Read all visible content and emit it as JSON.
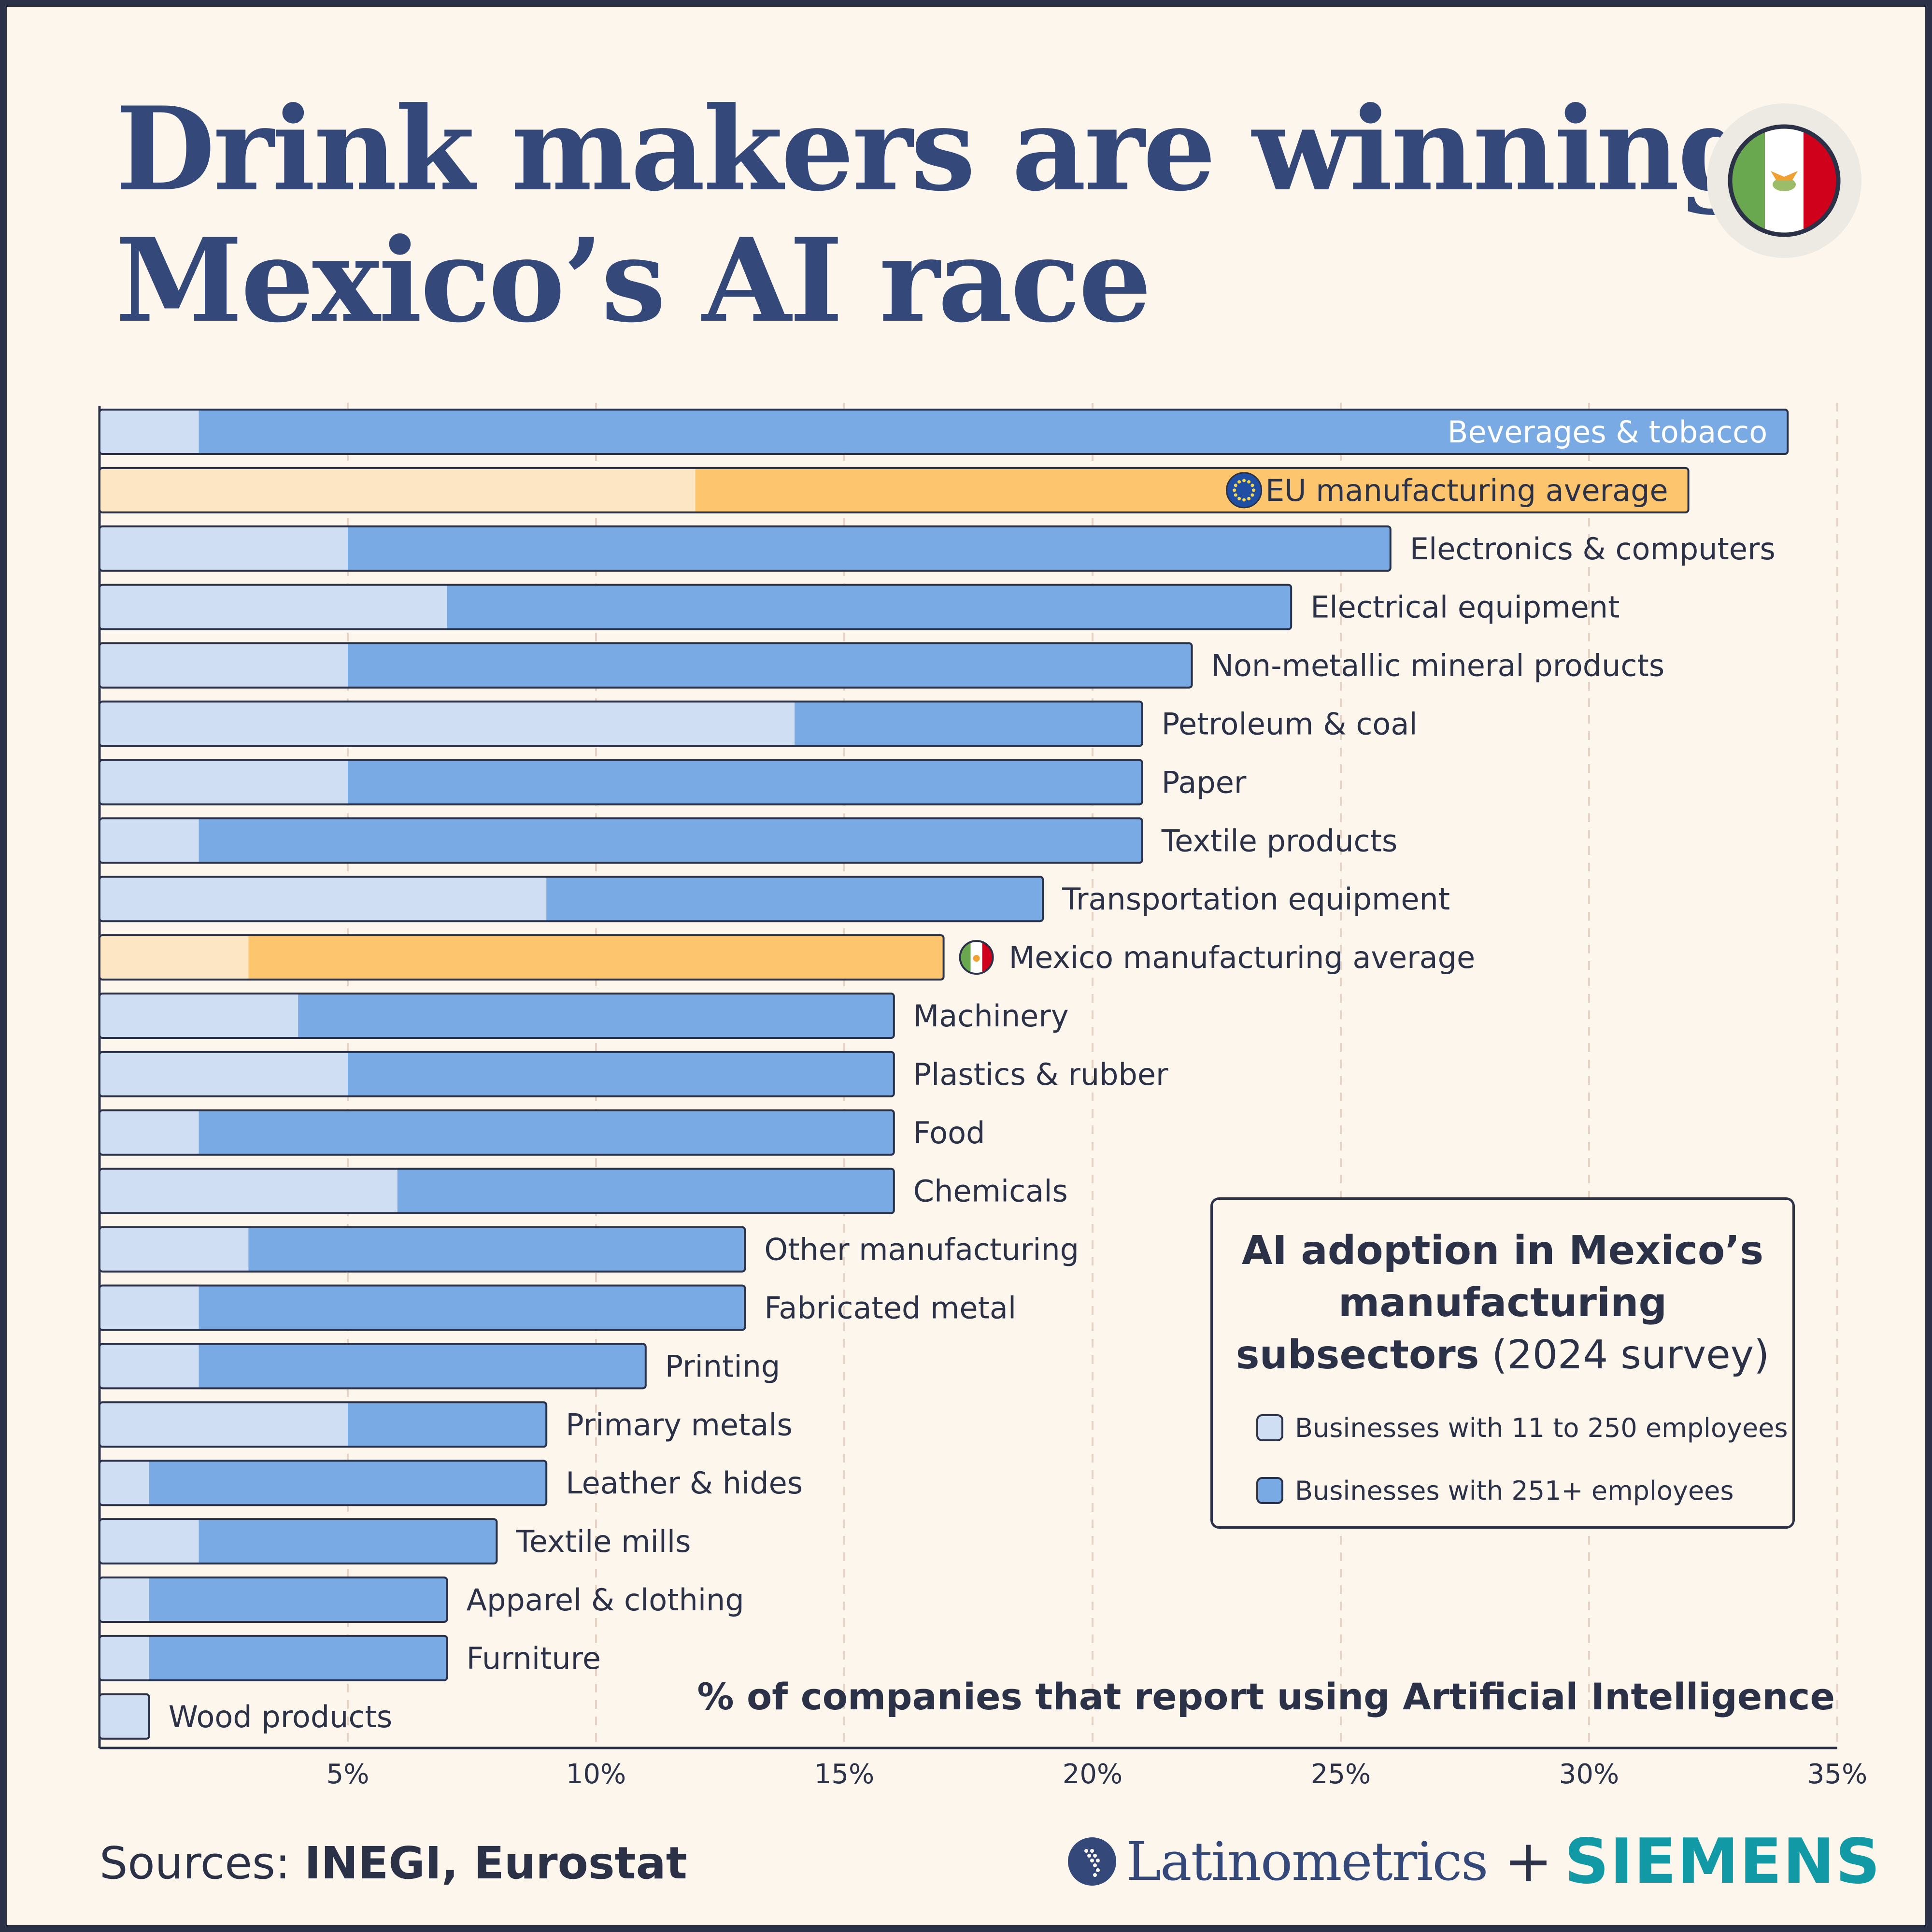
{
  "title": {
    "line1": "Drink makers are winning",
    "line2": "Mexico’s AI race"
  },
  "flag_icon": "mexico-flag-icon",
  "chart_data": {
    "type": "bar",
    "orientation": "horizontal",
    "stacked": false,
    "overlay": true,
    "categories": [
      "Beverages & tobacco",
      "EU manufacturing average",
      "Electronics & computers",
      "Electrical equipment",
      "Non-metallic mineral products",
      "Petroleum & coal",
      "Paper",
      "Textile products",
      "Transportation equipment",
      "Mexico manufacturing average",
      "Machinery",
      "Plastics & rubber",
      "Food",
      "Chemicals",
      "Other manufacturing",
      "Fabricated metal",
      "Printing",
      "Primary metals",
      "Leather & hides",
      "Textile mills",
      "Apparel & clothing",
      "Furniture",
      "Wood products"
    ],
    "series": [
      {
        "name": "Businesses with 11 to 250 employees",
        "values": [
          2,
          12,
          5,
          7,
          5,
          14,
          5,
          2,
          9,
          3,
          4,
          5,
          2,
          6,
          3,
          2,
          2,
          5,
          1,
          2,
          1,
          1,
          1
        ]
      },
      {
        "name": "Businesses with 251+ employees",
        "values": [
          34,
          32,
          26,
          24,
          22,
          21,
          21,
          21,
          19,
          17,
          16,
          16,
          16,
          16,
          13,
          13,
          11,
          9,
          9,
          8,
          7,
          7,
          0
        ]
      }
    ],
    "highlighted": [
      "EU manufacturing average",
      "Mexico manufacturing average"
    ],
    "highlight_icons": {
      "EU manufacturing average": "eu-flag-icon",
      "Mexico manufacturing average": "mexico-flag-icon"
    },
    "x_ticks": [
      "5%",
      "10%",
      "15%",
      "20%",
      "25%",
      "30%",
      "35%"
    ],
    "x_tick_values": [
      5,
      10,
      15,
      20,
      25,
      30,
      35
    ],
    "xlim": [
      0,
      35
    ],
    "xlabel": "% of companies that report using Artificial Intelligence",
    "grid": "vertical dashed",
    "legend_placement": "bottom-right",
    "colors": {
      "small": "#d0def4",
      "large": "#7aaae3",
      "avg_small": "#fde6c4",
      "avg_large": "#fdc66e",
      "outline": "#2b3147",
      "label": "#2b3147",
      "label_inside": "#ffffff",
      "grid": "#e6d3c4"
    }
  },
  "legend": {
    "title_bold": "AI adoption in Mexico’s manufacturing subsectors",
    "title_rest": " (2024 survey)",
    "items": [
      {
        "label": "Businesses with 11 to 250 employees",
        "color": "#d0def4"
      },
      {
        "label": "Businesses with 251+ employees",
        "color": "#7aaae3"
      }
    ]
  },
  "footer": {
    "sources_prefix": "Sources: ",
    "sources_bold": "INEGI, Eurostat",
    "logo_text": "Latinometrics",
    "plus": "+",
    "partner": "SIEMENS"
  }
}
